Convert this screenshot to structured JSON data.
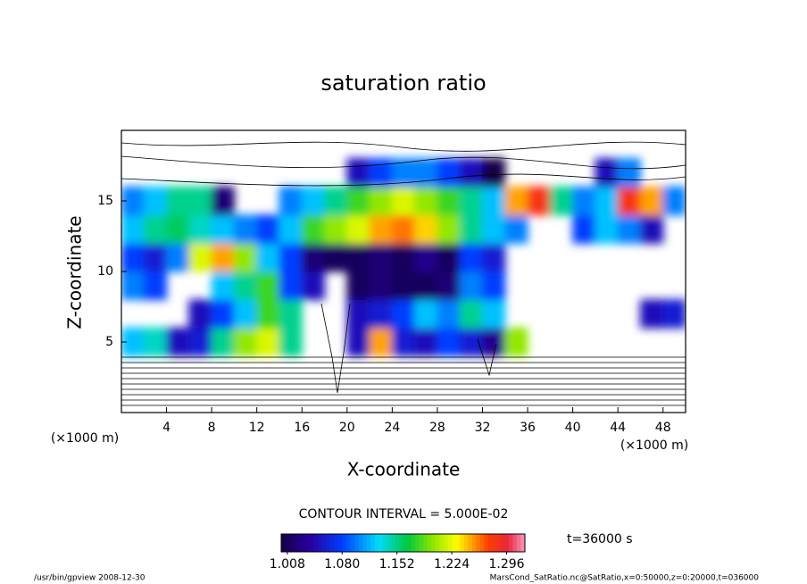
{
  "chart_data": {
    "type": "heatmap",
    "title": "saturation ratio",
    "x_label": "X-coordinate",
    "y_label": "Z-coordinate",
    "x_unit": "(×1000 m)",
    "y_unit": "(×1000 m)",
    "contour_interval": "CONTOUR INTERVAL = 5.000E-02",
    "time_label": "t=36000 s",
    "footer_left": "/usr/bin/gpview   2008-12-30",
    "footer_right": "MarsCond_SatRatio.nc@SatRatio,x=0:50000,z=0:20000,t=036000",
    "xlim": [
      0,
      50
    ],
    "ylim": [
      0,
      20
    ],
    "xticks": [
      4,
      8,
      12,
      16,
      20,
      24,
      28,
      32,
      36,
      40,
      44,
      48
    ],
    "yticks": [
      5,
      10,
      15
    ],
    "clim": [
      1.0,
      1.32
    ],
    "cticks": [
      1.008,
      {
        "value": 1.08,
        "label": "1.080"
      },
      1.152,
      1.224,
      1.296
    ],
    "x": [
      1,
      3,
      5,
      7,
      9,
      11,
      13,
      15,
      17,
      19,
      21,
      23,
      25,
      27,
      29,
      31,
      33,
      35,
      37,
      39,
      41,
      43,
      45,
      47,
      49
    ],
    "y": [
      1,
      3,
      5,
      7,
      9,
      11,
      13,
      15,
      17,
      19
    ],
    "values": [
      [
        0.3,
        0.3,
        0.3,
        0.3,
        0.3,
        0.3,
        0.3,
        0.3,
        0.3,
        0.2,
        0.3,
        0.3,
        0.3,
        0.3,
        0.3,
        0.3,
        0.3,
        0.3,
        0.3,
        0.3,
        0.3,
        0.3,
        0.3,
        0.3,
        0.3
      ],
      [
        0.5,
        0.5,
        0.5,
        0.5,
        0.5,
        0.55,
        0.5,
        0.5,
        0.45,
        0.4,
        0.5,
        0.5,
        0.5,
        0.5,
        0.5,
        0.5,
        0.5,
        0.5,
        0.5,
        0.5,
        0.5,
        0.5,
        0.5,
        0.5,
        0.5
      ],
      [
        1.12,
        1.14,
        1.05,
        1.06,
        1.15,
        1.2,
        1.22,
        1.15,
        0.9,
        0.85,
        1.05,
        1.25,
        1.06,
        1.05,
        1.08,
        1.06,
        1.03,
        1.2,
        0.8,
        0.8,
        0.8,
        0.8,
        0.8,
        0.8,
        0.85
      ],
      [
        0.9,
        0.92,
        0.95,
        1.05,
        1.08,
        1.12,
        1.18,
        1.15,
        0.9,
        0.92,
        1.05,
        1.06,
        1.08,
        1.12,
        1.1,
        1.15,
        1.12,
        0.85,
        0.85,
        0.85,
        0.85,
        0.9,
        0.95,
        1.05,
        1.06
      ],
      [
        1.1,
        1.08,
        0.9,
        0.95,
        1.12,
        1.15,
        1.18,
        1.08,
        1.05,
        0.95,
        1.01,
        1.02,
        1.01,
        1.01,
        1.02,
        1.1,
        1.08,
        0.85,
        0.85,
        0.85,
        0.85,
        0.85,
        0.88,
        0.9,
        0.88
      ],
      [
        1.08,
        1.06,
        1.1,
        1.22,
        1.25,
        1.2,
        1.12,
        1.08,
        1.02,
        1.01,
        1.01,
        1.02,
        1.01,
        1.03,
        1.01,
        1.08,
        1.06,
        0.85,
        0.85,
        0.9,
        0.9,
        0.9,
        0.95,
        0.9,
        0.9
      ],
      [
        1.12,
        1.15,
        1.16,
        1.14,
        1.12,
        1.1,
        1.08,
        1.12,
        1.18,
        1.2,
        1.22,
        1.25,
        1.26,
        1.24,
        1.2,
        1.15,
        1.12,
        1.1,
        0.95,
        0.95,
        1.08,
        1.12,
        1.1,
        1.05,
        0.95
      ],
      [
        1.1,
        1.12,
        1.15,
        1.15,
        1.02,
        0.95,
        0.98,
        1.1,
        1.12,
        1.15,
        1.18,
        1.2,
        1.22,
        1.2,
        1.18,
        1.15,
        1.12,
        1.25,
        1.28,
        1.15,
        1.1,
        1.12,
        1.28,
        1.25,
        1.1
      ],
      [
        0.85,
        0.85,
        0.8,
        0.8,
        0.85,
        0.9,
        0.9,
        0.85,
        0.9,
        0.95,
        1.05,
        1.08,
        1.1,
        1.1,
        1.08,
        1.05,
        1.0,
        0.95,
        0.9,
        0.9,
        0.95,
        1.05,
        1.1,
        0.95,
        0.9
      ],
      [
        0.7,
        0.75,
        0.75,
        0.8,
        0.75,
        0.7,
        0.7,
        0.75,
        0.75,
        0.8,
        0.8,
        0.75,
        0.75,
        0.7,
        0.75,
        0.75,
        0.7,
        0.7,
        0.75,
        0.8,
        0.75,
        0.75,
        0.8,
        0.75,
        0.7
      ]
    ]
  }
}
